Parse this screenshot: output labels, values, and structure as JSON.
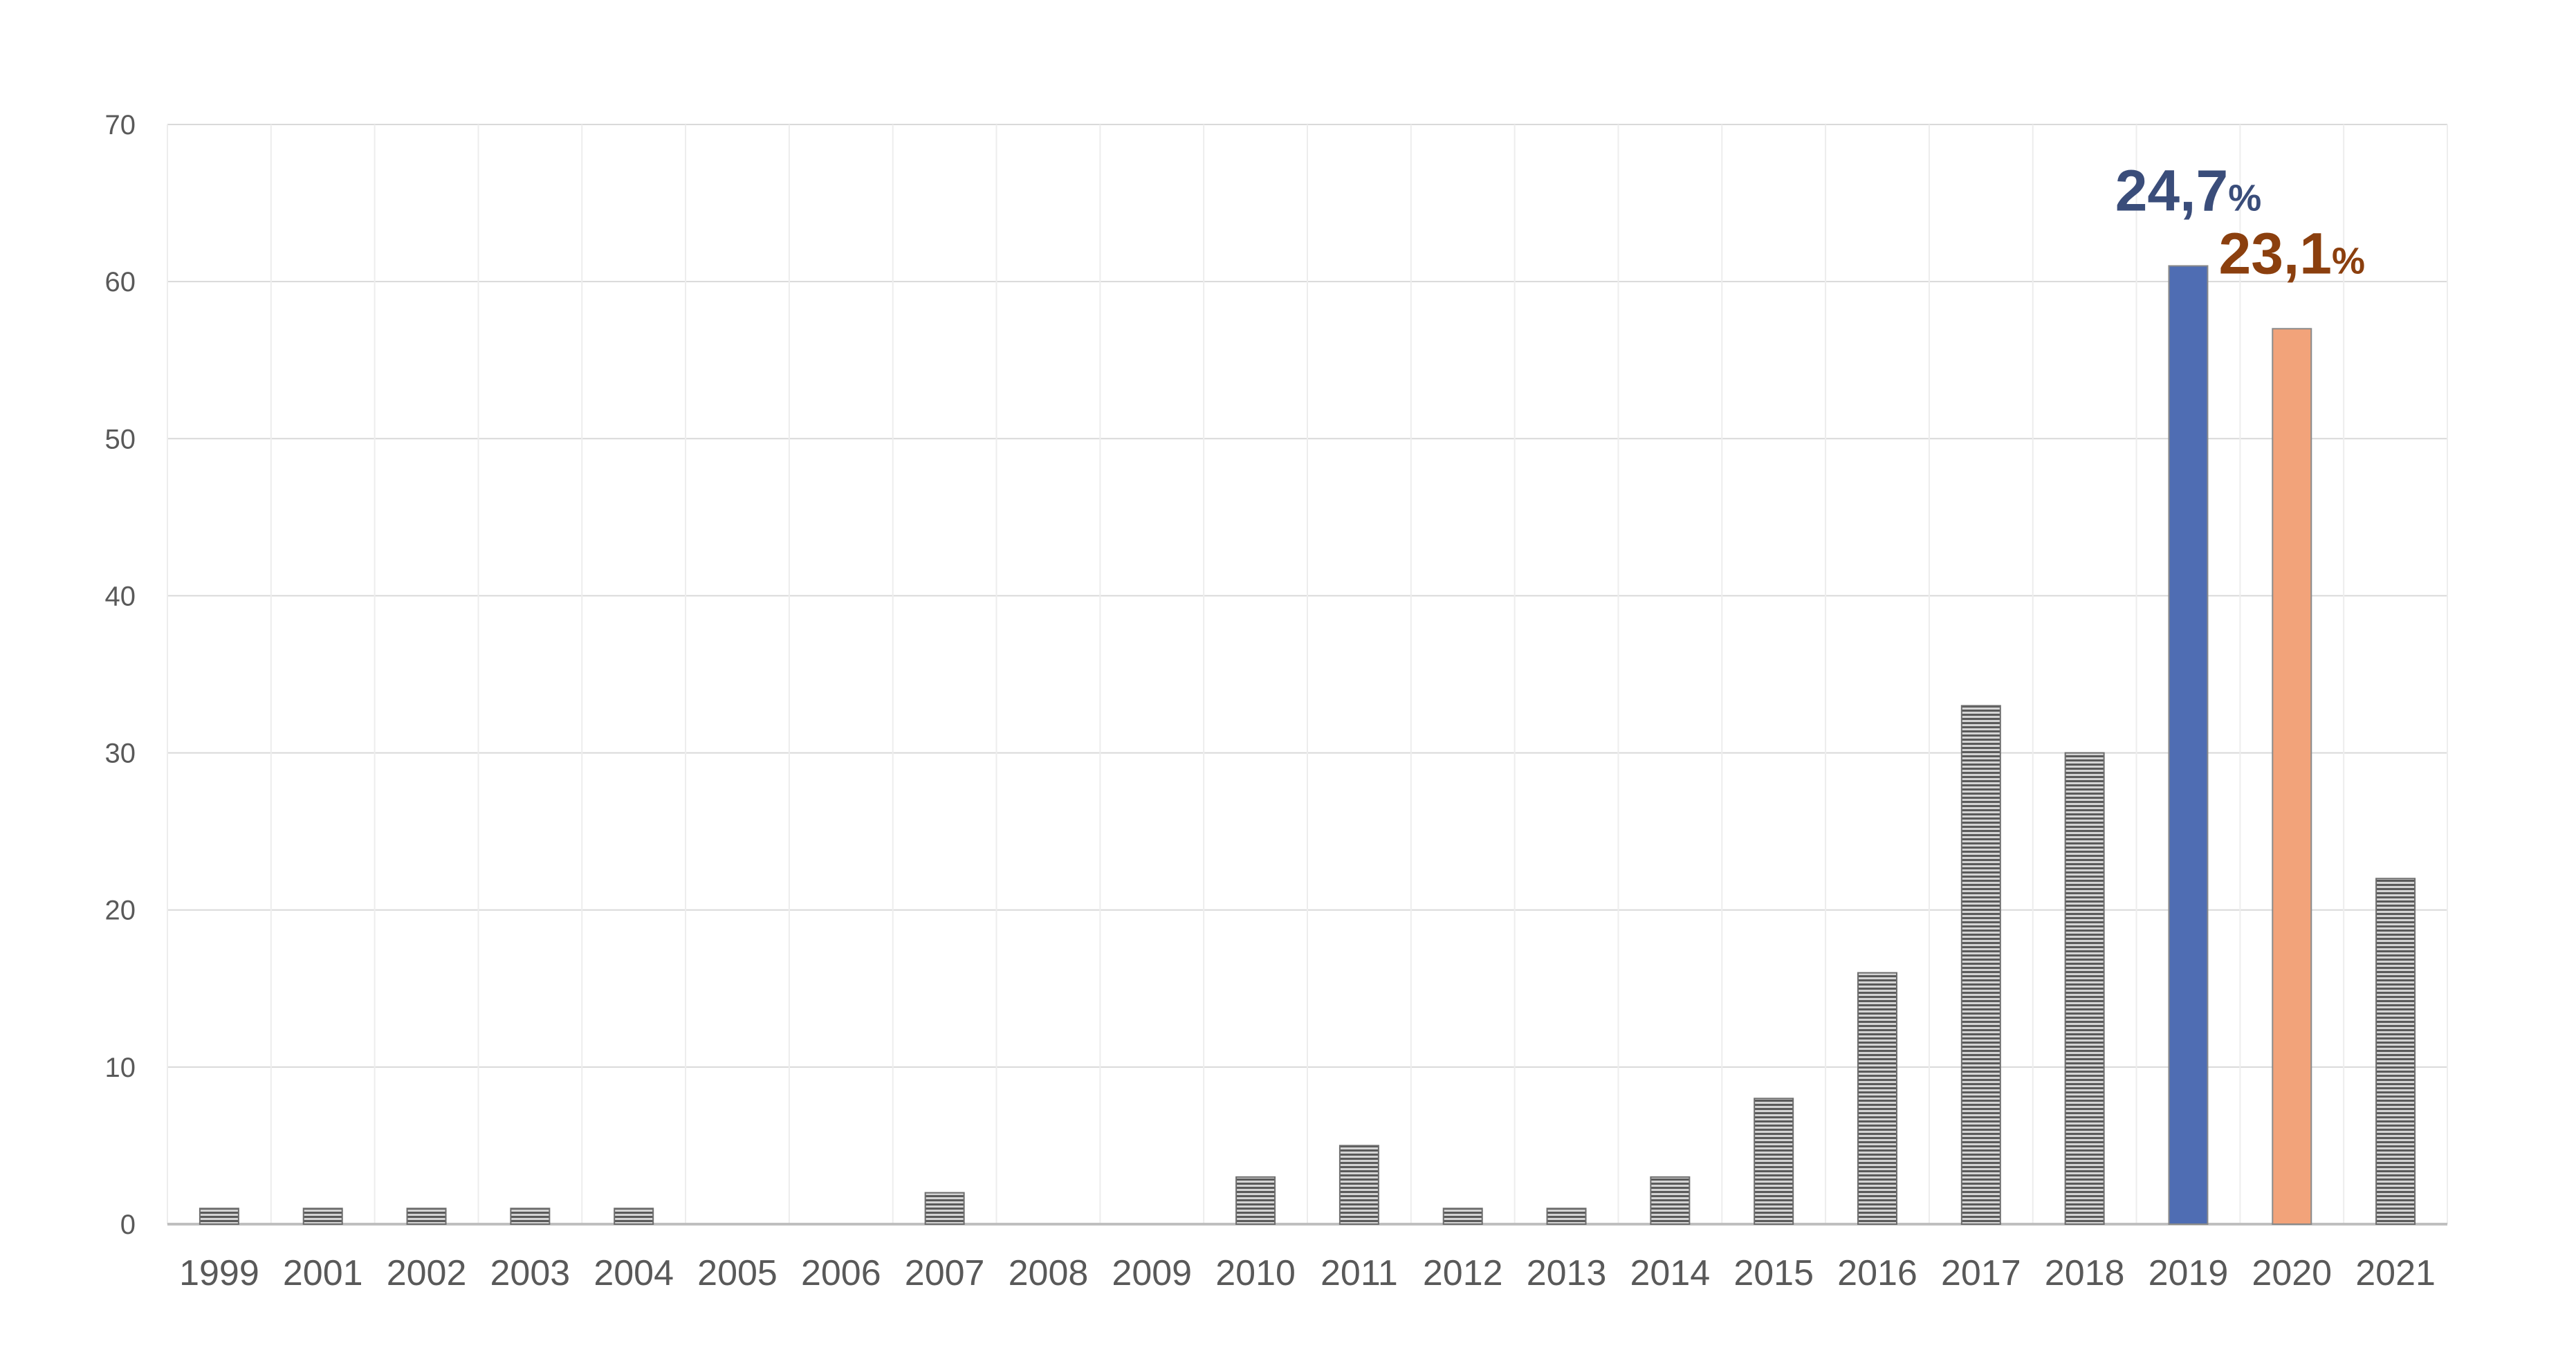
{
  "chart_data": {
    "type": "bar",
    "title": "",
    "xlabel": "",
    "ylabel": "",
    "ylim": [
      0,
      70
    ],
    "yticks": [
      0,
      10,
      20,
      30,
      40,
      50,
      60,
      70
    ],
    "grid": "on",
    "legend": "none",
    "categories": [
      "1999",
      "2001",
      "2002",
      "2003",
      "2004",
      "2005",
      "2006",
      "2007",
      "2008",
      "2009",
      "2010",
      "2011",
      "2012",
      "2013",
      "2014",
      "2015",
      "2016",
      "2017",
      "2018",
      "2019",
      "2020",
      "2021"
    ],
    "values": [
      1,
      1,
      1,
      1,
      1,
      0,
      0,
      2,
      0,
      0,
      3,
      5,
      1,
      1,
      3,
      8,
      16,
      33,
      30,
      61,
      57,
      22
    ],
    "highlights": [
      {
        "category": "2019",
        "color": "#4F6DB3",
        "annotation": "24,7",
        "annotation_unit": "%",
        "annotation_color": "#3A4D7A"
      },
      {
        "category": "2020",
        "color": "#F2A37A",
        "annotation": "23,1",
        "annotation_unit": "%",
        "annotation_color": "#8B3F0E"
      }
    ],
    "colors": {
      "default_bar": "hatched-gray",
      "grid": "#D9D9D9",
      "axis": "#BFBFBF",
      "tick_text": "#595959"
    }
  }
}
